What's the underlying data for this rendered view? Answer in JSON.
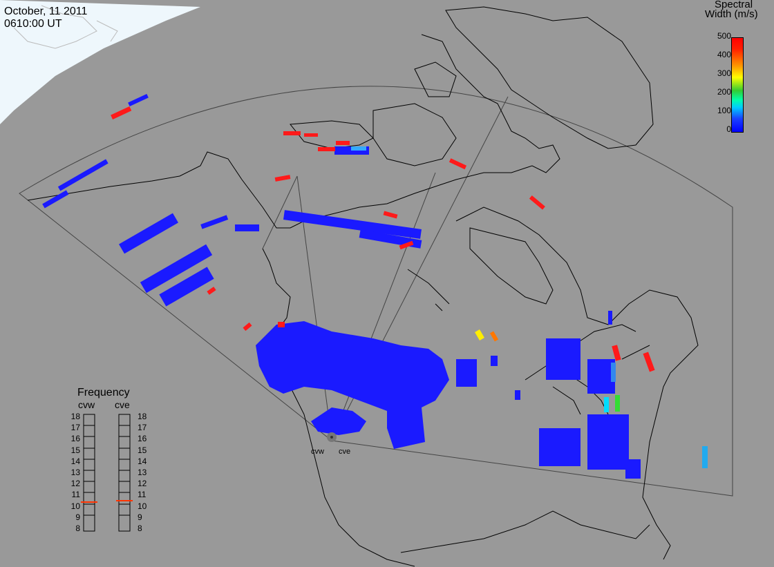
{
  "date_label": "October, 11 2011",
  "time_label": "0610:00 UT",
  "colorbar": {
    "title_line1": "Spectral",
    "title_line2": "Width (m/s)",
    "ticks": [
      "500",
      "400",
      "300",
      "200",
      "100",
      "0"
    ]
  },
  "frequency_panel": {
    "title": "Frequency",
    "left_label": "cvw",
    "right_label": "cve",
    "scale": [
      "18",
      "17",
      "16",
      "15",
      "14",
      "13",
      "12",
      "11",
      "10",
      "9",
      "8"
    ],
    "cvw_selected_mhz": 10.5,
    "cve_selected_mhz": 10.5
  },
  "radar_labels": {
    "west": "cvw",
    "east": "cve"
  },
  "colors": {
    "ocean": "#999999",
    "ice": "#eef7fc",
    "coast": "#000000",
    "fov": "#444444",
    "low": "#1a1aff",
    "high": "#ff1a1a",
    "indicator": "#ff3300"
  }
}
